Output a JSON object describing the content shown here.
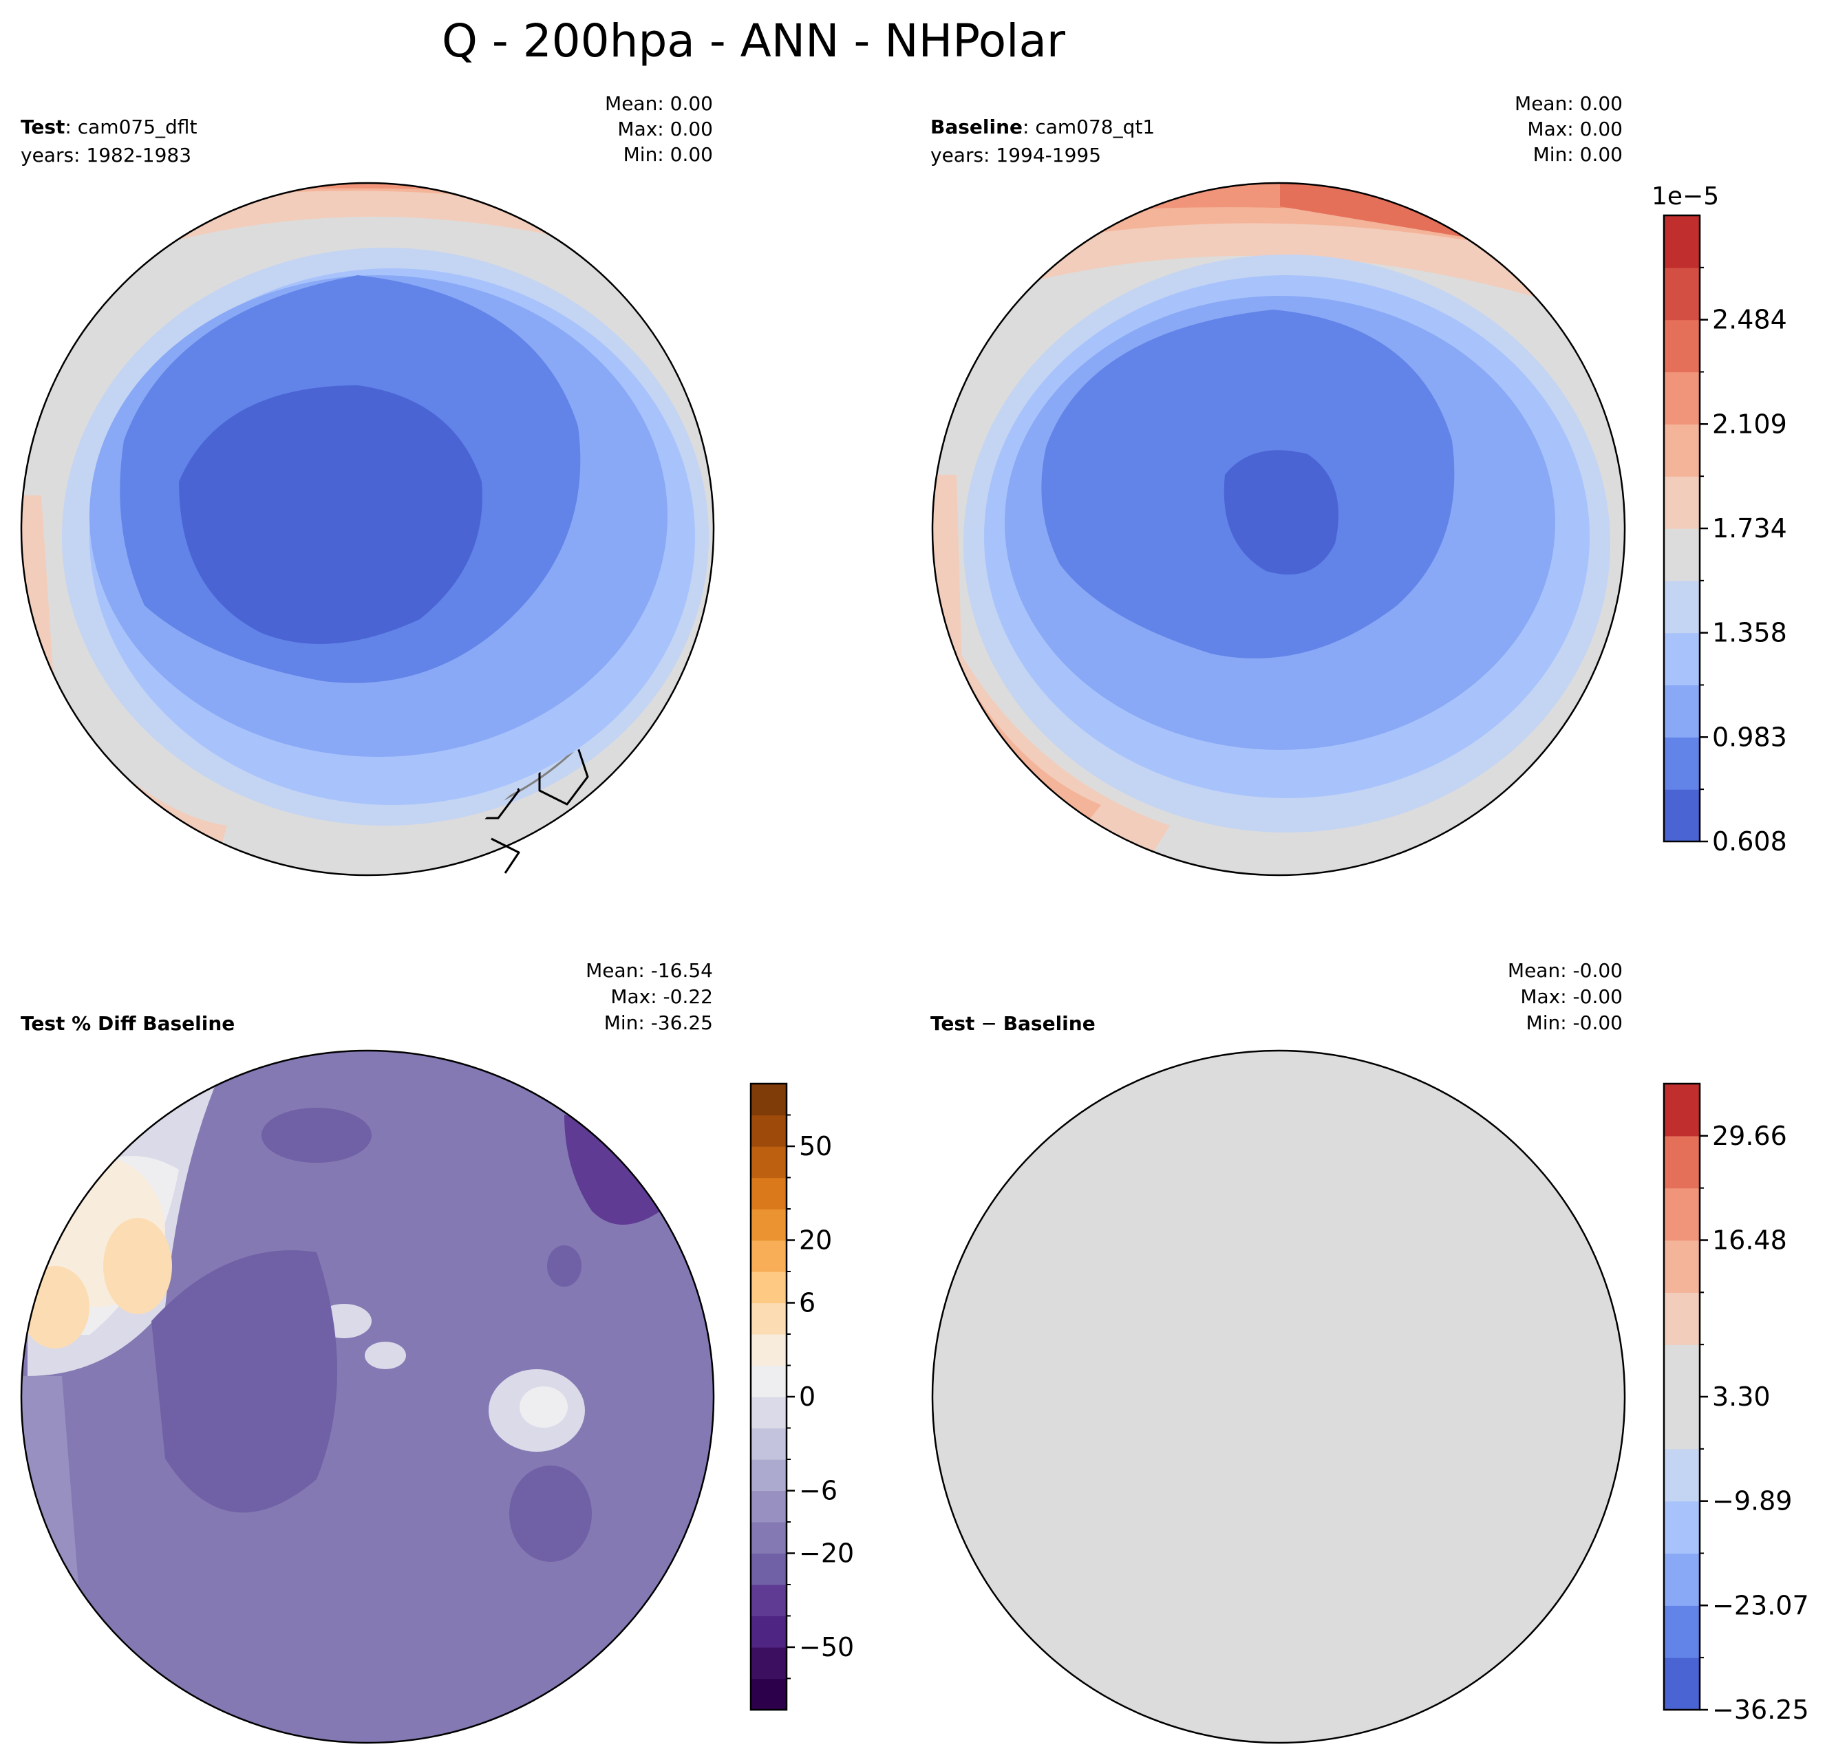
{
  "figure": {
    "title": "Q - 200hpa - ANN - NHPolar"
  },
  "chart_data": [
    {
      "type": "contour-map",
      "projection": "north-polar-stereographic",
      "panel": "top-left",
      "label_bold": "Test",
      "label_rest": ": cam075_dflt",
      "years": "years: 1982-1983",
      "stats": {
        "mean": "Mean:  0.00",
        "max": "Max:  0.00",
        "min": "Min:  0.00"
      },
      "field": "test"
    },
    {
      "type": "contour-map",
      "projection": "north-polar-stereographic",
      "panel": "top-right",
      "label_bold": "Baseline",
      "label_rest": ": cam078_qt1",
      "years": "years: 1994-1995",
      "stats": {
        "mean": "Mean:  0.00",
        "max": "Max:  0.00",
        "min": "Min:  0.00"
      },
      "field": "baseline"
    },
    {
      "type": "contour-map",
      "projection": "north-polar-stereographic",
      "panel": "bottom-left",
      "label_bold": "Test % Diff Baseline",
      "stats": {
        "mean": "Mean: -16.54",
        "max": "Max: -0.22",
        "min": "Min: -36.25"
      },
      "field": "pctdiff"
    },
    {
      "type": "contour-map",
      "projection": "north-polar-stereographic",
      "panel": "bottom-right",
      "label_bold": "Test",
      "label_op": " − ",
      "label_bold2": "Baseline",
      "stats": {
        "mean": "Mean: -0.00",
        "max": "Max: -0.00",
        "min": "Min: -0.00"
      },
      "field": "diff"
    }
  ],
  "colorbars": {
    "top": {
      "exponent": "1e−5",
      "ticks": [
        "0.608",
        "0.983",
        "1.358",
        "1.734",
        "2.109",
        "2.484"
      ],
      "levels": 12,
      "colors": [
        "#4a64d4",
        "#6283e8",
        "#89a8f5",
        "#a8c3fb",
        "#c4d4f3",
        "#dcdcdc",
        "#f2cdbb",
        "#f4b49a",
        "#f0957a",
        "#e5705a",
        "#d44f43",
        "#c02f2e"
      ]
    },
    "pct": {
      "ticks": [
        "50",
        "20",
        "6",
        "0",
        "−6",
        "−20",
        "−50"
      ],
      "colors": [
        "#2d004b",
        "#3d0f60",
        "#4f2584",
        "#5f3b94",
        "#7060a5",
        "#8479b3",
        "#9790c0",
        "#acaacf",
        "#c3c3dd",
        "#dadae9",
        "#eeeef1",
        "#f8ecdc",
        "#fcdcb3",
        "#fdc983",
        "#f7ae57",
        "#ea9330",
        "#d9791b",
        "#bd600f",
        "#9e4a0b",
        "#7f3b08"
      ]
    },
    "diff": {
      "ticks": [
        "29.66",
        "16.48",
        "3.30",
        "−9.89",
        "−23.07",
        "−36.25"
      ],
      "colors": [
        "#4a64d4",
        "#6283e8",
        "#89a8f5",
        "#a8c3fb",
        "#c4d4f3",
        "#dcdcdc",
        "#dcdcdc",
        "#f2cdbb",
        "#f4b49a",
        "#f0957a",
        "#e5705a",
        "#c02f2e"
      ]
    }
  }
}
